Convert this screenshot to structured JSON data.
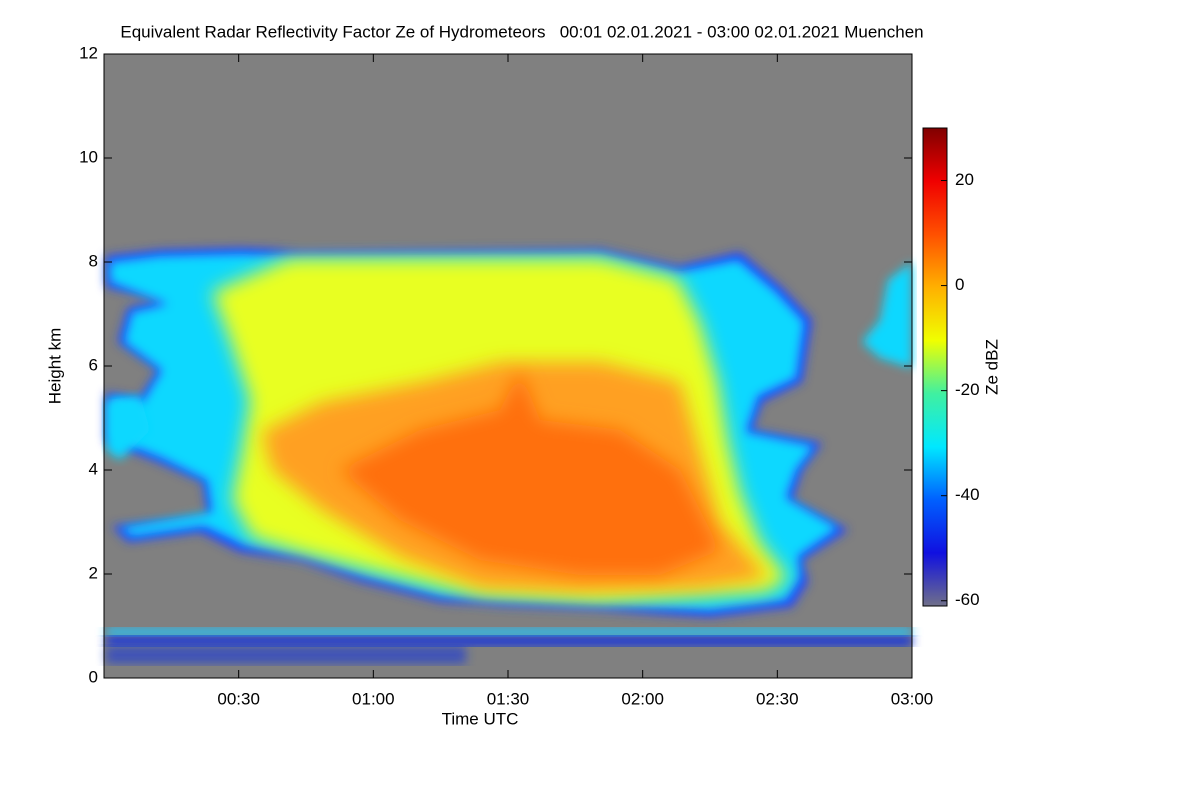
{
  "chart_data": {
    "type": "heatmap",
    "title": "Equivalent Radar Reflectivity Factor Ze of Hydrometeors   00:01 02.01.2021 - 03:00 02.01.2021 Muenchen",
    "x_label": "Time UTC",
    "y_label": "Height km",
    "colorbar_label": "Ze dBZ",
    "xlim": [
      0,
      180
    ],
    "xticks": [
      {
        "value": 30,
        "label": "00:30"
      },
      {
        "value": 60,
        "label": "01:00"
      },
      {
        "value": 90,
        "label": "01:30"
      },
      {
        "value": 120,
        "label": "02:00"
      },
      {
        "value": 150,
        "label": "02:30"
      },
      {
        "value": 180,
        "label": "03:00"
      }
    ],
    "ylim": [
      0,
      12
    ],
    "yticks": [
      0,
      2,
      4,
      6,
      8,
      10,
      12
    ],
    "clim": [
      -61,
      30
    ],
    "cticks": [
      -60,
      -40,
      -20,
      0,
      20
    ],
    "colormap": [
      "#70708a",
      "#1010e0",
      "#0060ff",
      "#00e8ff",
      "#40f0a0",
      "#f0ff00",
      "#ffb000",
      "#ff5000",
      "#f00000",
      "#800000"
    ],
    "background": "#808080"
  }
}
